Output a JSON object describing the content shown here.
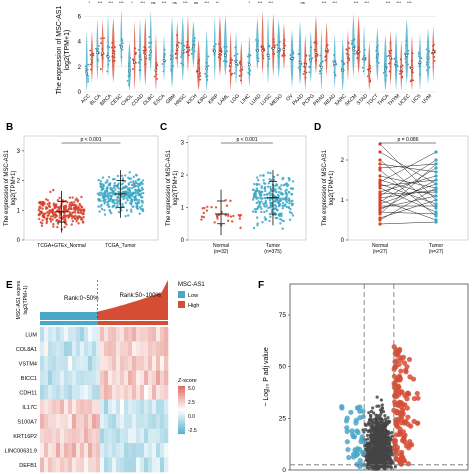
{
  "panel_labels": {
    "B": "B",
    "C": "C",
    "D": "D",
    "E": "E",
    "F": "F"
  },
  "colors": {
    "normal": "#d6412b",
    "tumor": "#3aa7c4",
    "low": "#4aa7c8",
    "high": "#d64d36",
    "ns": "#444444",
    "gray": "#6f6f6f"
  },
  "chart_data": [
    {
      "id": "A",
      "type": "violin",
      "ylabel": "The expression of MSC-AS1\nlog2(TPM+1)",
      "yticks": [
        "0",
        "2",
        "4",
        "6"
      ],
      "categories": [
        "ACC",
        "BLCA",
        "BRCA",
        "CESC",
        "CHOL",
        "COAD",
        "DLBC",
        "ESCA",
        "GBM",
        "HNSC",
        "KICH",
        "KIRC",
        "KIRP",
        "LAML",
        "LGG",
        "LIHC",
        "LUAD",
        "LUSC",
        "MESO",
        "OV",
        "PAAD",
        "PCPG",
        "PRAD",
        "READ",
        "SARC",
        "SKCM",
        "STAD",
        "TGCT",
        "THCA",
        "THYM",
        "UCEC",
        "UCS",
        "UVM"
      ],
      "markers": [
        "*",
        "***",
        "***",
        "***",
        "*",
        "***",
        "ns",
        "***",
        "ns",
        "***",
        "ns",
        "***",
        "**",
        "",
        "",
        "*",
        "***",
        "***",
        "",
        "",
        "ns",
        "",
        "***",
        "***",
        "",
        "***",
        "***",
        "",
        "***",
        "***",
        "***",
        "",
        ""
      ]
    },
    {
      "id": "B",
      "type": "scatter-box",
      "ylabel": "The expression of MSC-AS1\nlog2(TPM+1)",
      "yticks": [
        "0",
        "1",
        "2",
        "3"
      ],
      "ylim": [
        0,
        3.5
      ],
      "categories": [
        "TCGA+GTEx_Normal",
        "TCGA_Tumor"
      ],
      "medians": [
        0.95,
        1.55
      ],
      "q1": [
        0.6,
        1.1
      ],
      "q3": [
        1.3,
        2.0
      ],
      "pvalue": "p < 0.001"
    },
    {
      "id": "C",
      "type": "scatter-box",
      "ylabel": "The expression of MSC-AS1\nlog2(TPM+1)",
      "yticks": [
        "0",
        "1",
        "2",
        "3"
      ],
      "ylim": [
        0,
        3.2
      ],
      "categories": [
        "Normal\n(n=32)",
        "Tumor\n(n=375)"
      ],
      "medians": [
        0.8,
        1.3
      ],
      "q1": [
        0.5,
        0.8
      ],
      "q3": [
        1.2,
        1.8
      ],
      "pvalue": "p < 0.001"
    },
    {
      "id": "D",
      "type": "paired",
      "ylabel": "The expression of MSC-AS1\nlog2(TPM+1)",
      "yticks": [
        "0",
        "1",
        "2"
      ],
      "ylim": [
        0,
        2.6
      ],
      "categories": [
        "Normal\n(n=27)",
        "Tumor\n(n=27)"
      ],
      "normal": [
        2.4,
        2.2,
        2.0,
        1.9,
        1.8,
        1.75,
        1.6,
        1.5,
        1.45,
        1.4,
        1.35,
        1.3,
        1.2,
        1.15,
        1.1,
        1.05,
        1.0,
        0.95,
        0.9,
        0.85,
        0.8,
        0.75,
        0.7,
        0.65,
        0.55,
        0.5,
        0.4
      ],
      "tumor": [
        1.0,
        1.4,
        0.8,
        1.7,
        1.9,
        0.6,
        1.3,
        1.1,
        2.2,
        0.9,
        1.5,
        0.7,
        1.6,
        1.2,
        2.0,
        1.25,
        0.5,
        1.8,
        1.4,
        0.85,
        1.1,
        1.5,
        0.65,
        1.9,
        1.0,
        1.3,
        0.45
      ],
      "pvalue": "p = 0.086"
    },
    {
      "id": "E",
      "type": "heatmap",
      "top_ylabel": "MSC-AS1 expres\nlog2(TPM+1)",
      "ranks": [
        "Rank:0~50%",
        "Rank:50~100%"
      ],
      "legend_title": "MSC-AS1",
      "legend_items": [
        "Low",
        "High"
      ],
      "rows": [
        "LUM",
        "COL8A1",
        "VSTM4",
        "BICC1",
        "CDH11",
        "IL17C",
        "S100A7",
        "KRT16P2",
        "LINC00631.9",
        "DEFB1"
      ],
      "zscore_title": "Z-score",
      "zscore_ticks": [
        "5.0",
        "2.5",
        "0.0",
        "-2.5"
      ]
    },
    {
      "id": "F",
      "type": "volcano",
      "ylabel": "− Log₁₀ P adj value",
      "yticks": [
        "0",
        "25",
        "50",
        "75"
      ],
      "ylim": [
        0,
        90
      ],
      "xlim": [
        -6,
        6
      ],
      "xcut": [
        -1,
        1
      ]
    }
  ]
}
